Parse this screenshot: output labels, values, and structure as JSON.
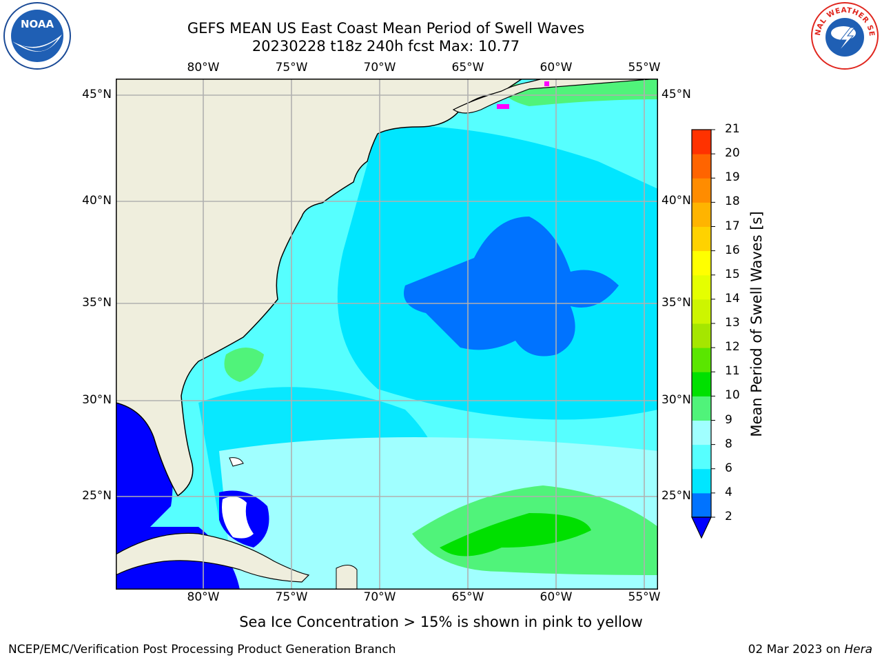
{
  "header": {
    "title_line1": "GEFS MEAN US East Coast Mean Period of Swell Waves",
    "title_line2": "20230228 t18z 240h fcst   Max: 10.77"
  },
  "logos": {
    "left": {
      "name": "noaa-logo",
      "text": "NOAA"
    },
    "right": {
      "name": "national-weather-service-logo",
      "ring_text": "NATIONAL WEATHER SERVICE"
    }
  },
  "map": {
    "lon_labels": [
      "80°W",
      "75°W",
      "70°W",
      "65°W",
      "60°W",
      "55°W"
    ],
    "lat_labels": [
      "45°N",
      "40°N",
      "35°N",
      "30°N",
      "25°N"
    ],
    "colors": {
      "land": "#efeedd",
      "coast": "#000000",
      "grid": "#b0b0b0",
      "sea_ice": "#ff00ff"
    }
  },
  "colorbar": {
    "label": "Mean Period of Swell Waves [s]",
    "ticks": [
      "2",
      "4",
      "6",
      "8",
      "9",
      "10",
      "11",
      "12",
      "13",
      "14",
      "15",
      "16",
      "17",
      "18",
      "19",
      "20",
      "21"
    ],
    "colors": [
      "#0073ff",
      "#00e6ff",
      "#56ffff",
      "#a0ffff",
      "#50f37a",
      "#00e000",
      "#5ae600",
      "#a5e600",
      "#cdf500",
      "#e5ff00",
      "#ffff00",
      "#ffd200",
      "#ffb400",
      "#ff8c00",
      "#ff6400",
      "#ff3200"
    ],
    "under_color": "#0000ff"
  },
  "note": "Sea Ice Concentration > 15% is shown in pink to yellow",
  "footer": {
    "left": "NCEP/EMC/Verification Post Processing Product Generation Branch",
    "right_date": "02 Mar 2023 on ",
    "right_machine": "Hera"
  }
}
